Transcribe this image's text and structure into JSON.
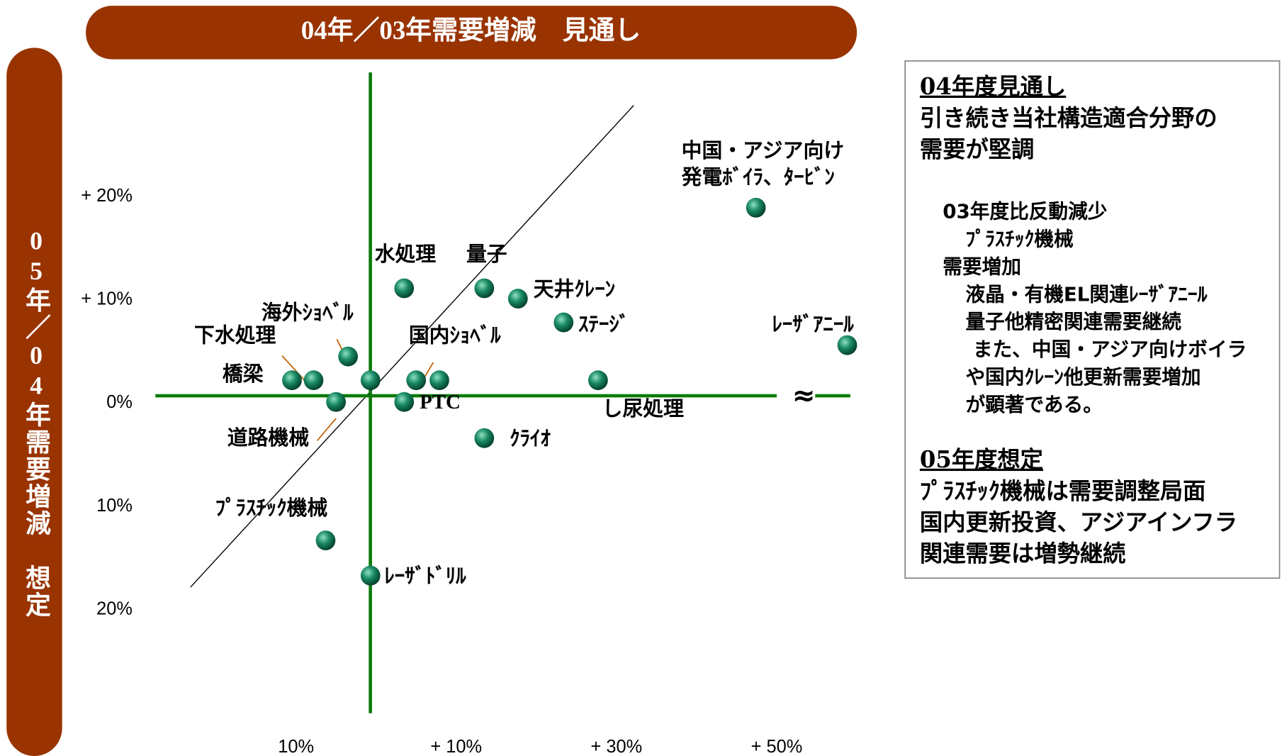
{
  "chart_data": {
    "type": "scatter",
    "title": "04年／03年需要増減　見通し",
    "y_axis_label": "05年／04年需要増減　想定",
    "xlim": [
      -30,
      60
    ],
    "ylim": [
      -30,
      32
    ],
    "xticks": [
      {
        "value": -10,
        "label": "10%"
      },
      {
        "value": 10,
        "label": "+ 10%"
      },
      {
        "value": 30,
        "label": "+ 30%"
      },
      {
        "value": 50,
        "label": "+ 50%"
      }
    ],
    "yticks": [
      {
        "value": 20,
        "label": "+ 20%"
      },
      {
        "value": 10,
        "label": "+ 10%"
      },
      {
        "value": 0,
        "label": "0%"
      },
      {
        "value": -10,
        "label": "10%"
      },
      {
        "value": -20,
        "label": "20%"
      }
    ],
    "break_mark": "≈",
    "color": "#007050",
    "x": [
      47.4,
      3.5,
      13.5,
      17.7,
      23.4,
      58.8,
      -3.5,
      5,
      -10.5,
      -7.8,
      -0.7,
      7.9,
      27.7,
      3.5,
      -5,
      13.5,
      -6.3,
      -0.7
    ],
    "values": [
      17.8,
      10,
      10,
      9,
      6.7,
      4.5,
      3.4,
      1.1,
      1.1,
      1.1,
      1.1,
      1.1,
      1.1,
      -1,
      -1,
      -4.5,
      -14.4,
      -17.8
    ],
    "labels": [
      "中国・アジア向け\n発電ﾎﾞｲﾗ、ﾀｰﾋﾞﾝ",
      "水処理",
      "量子",
      "天井ｸﾚｰﾝ",
      "ｽﾃｰｼﾞ",
      "ﾚｰｻﾞｱﾆｰﾙ",
      "海外ｼｮﾍﾞﾙ",
      "国内ｼｮﾍﾞﾙ",
      "橋梁",
      "下水処理",
      null,
      null,
      "し尿処理",
      "PTC",
      "道路機械",
      "ｸﾗｲｵ",
      "ﾌﾟﾗｽﾁｯｸ機械",
      "ﾚｰｻﾞﾄﾞﾘﾙ"
    ]
  },
  "panel": {
    "heading_2004": "04年度見通し",
    "summary_2004": [
      "引き続き当社構造適合分野の",
      "需要が堅調"
    ],
    "details": [
      "03年度比反動減少",
      "ﾌﾟﾗｽﾁｯｸ機械",
      "需要増加",
      "液晶・有機EL関連ﾚｰｻﾞｱﾆｰﾙ",
      "量子他精密関連需要継続",
      "また、中国・アジア向けボイラ",
      "や国内ｸﾚｰﾝ他更新需要増加",
      "が顕著である。"
    ],
    "heading_2005": "05年度想定",
    "summary_2005": [
      "ﾌﾟﾗｽﾁｯｸ機械は需要調整局面",
      "国内更新投資、アジアインフラ",
      "関連需要は増勢継続"
    ]
  }
}
